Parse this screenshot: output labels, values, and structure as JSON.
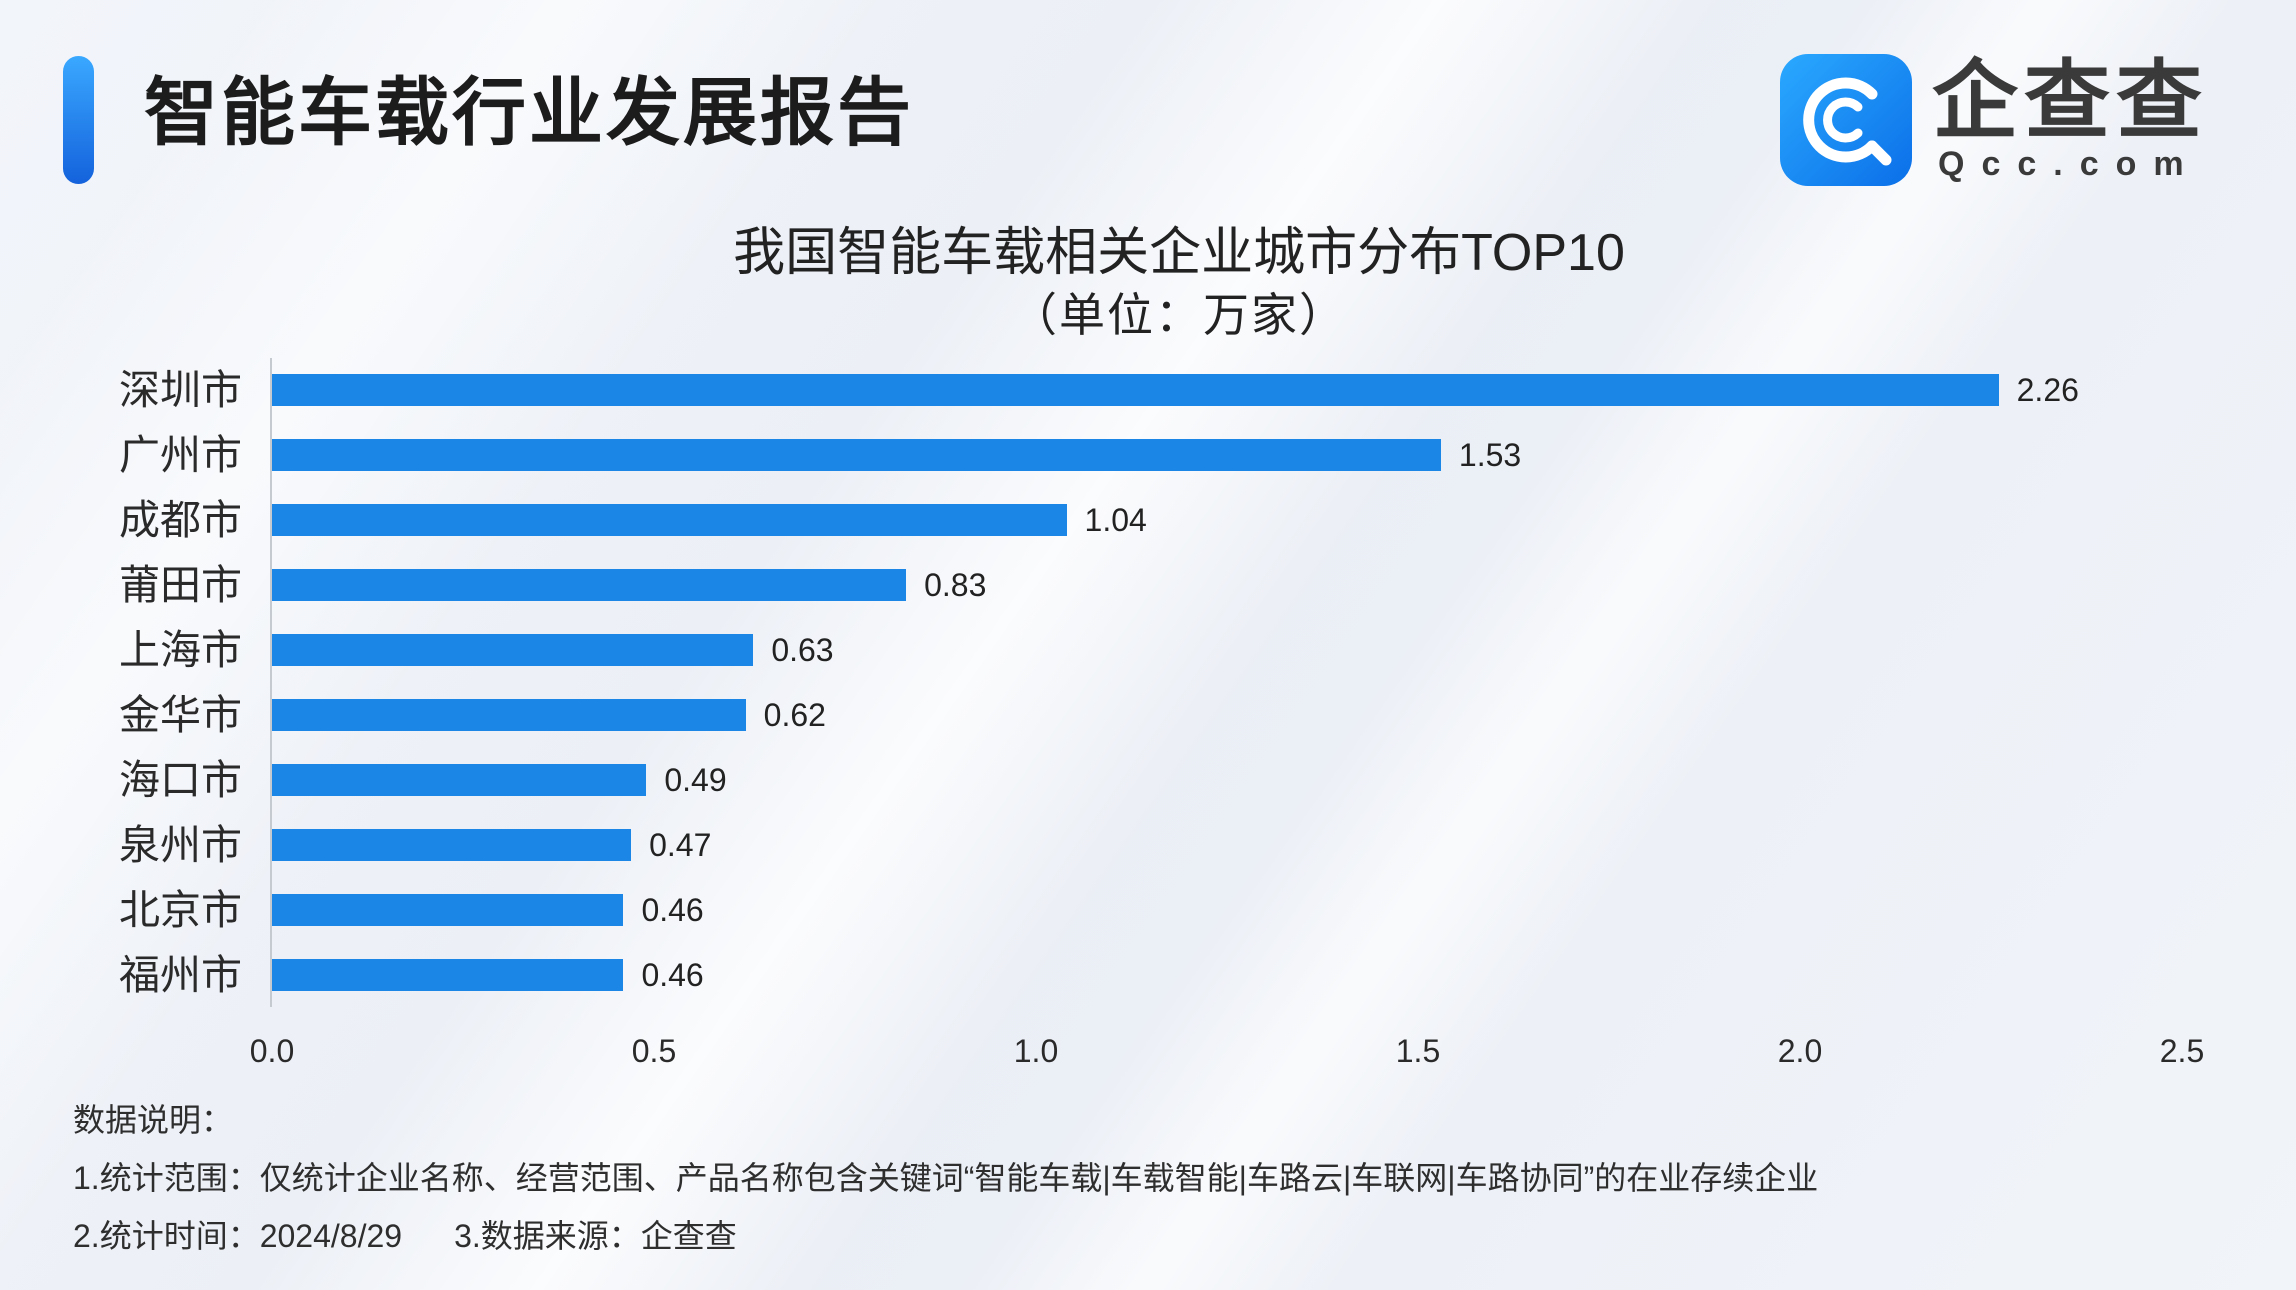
{
  "header": {
    "title": "智能车载行业发展报告"
  },
  "logo": {
    "name": "企查查",
    "domain": "Qcc.com",
    "icon": "qcc-logo-icon"
  },
  "colors": {
    "bar": "#1c86e6",
    "accent": "#1f7be6",
    "logo_blue": "#1690f0",
    "text": "#222222"
  },
  "chart_data": {
    "type": "bar",
    "orientation": "horizontal",
    "title": "我国智能车载相关企业城市分布TOP10",
    "subtitle": "（单位：万家）",
    "categories": [
      "深圳市",
      "广州市",
      "成都市",
      "莆田市",
      "上海市",
      "金华市",
      "海口市",
      "泉州市",
      "北京市",
      "福州市"
    ],
    "values": [
      2.26,
      1.53,
      1.04,
      0.83,
      0.63,
      0.62,
      0.49,
      0.47,
      0.46,
      0.46
    ],
    "xticks": [
      "0.0",
      "0.5",
      "1.0",
      "1.5",
      "2.0",
      "2.5"
    ],
    "xlim": [
      0,
      2.5
    ],
    "xlabel": "",
    "ylabel": "",
    "grid": false,
    "legend": "none",
    "data_labels": true
  },
  "notes": {
    "heading": "数据说明：",
    "scope": "1.统计范围：仅统计企业名称、经营范围、产品名称包含关键词“智能车载|车载智能|车路云|车联网|车路协同”的在业存续企业",
    "date": "2.统计时间：2024/8/29",
    "source": "3.数据来源：企查查"
  }
}
